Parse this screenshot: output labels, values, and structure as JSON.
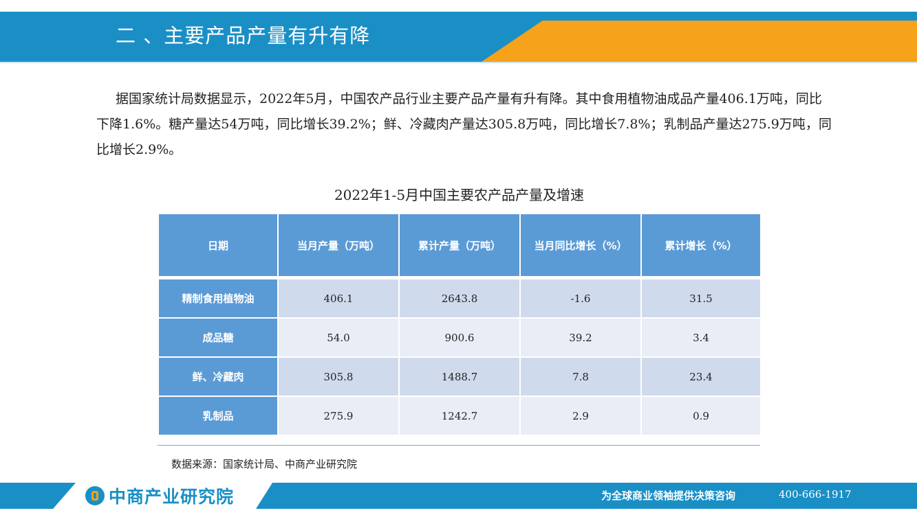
{
  "header": {
    "title": "二 、主要产品产量有升有降"
  },
  "paragraph": "据国家统计局数据显示，2022年5月，中国农产品行业主要产品产量有升有降。其中食用植物油成品产量406.1万吨，同比下降1.6%。糖产量达54万吨，同比增长39.2%；鲜、冷藏肉产量达305.8万吨，同比增长7.8%；乳制品产量达275.9万吨，同比增长2.9%。",
  "table": {
    "caption": "2022年1-5月中国主要农产品产量及增速",
    "headers": [
      "日期",
      "当月产量（万吨）",
      "累计产量（万吨）",
      "当月同比增长（%）",
      "累计增长（%）"
    ],
    "rows": [
      [
        "精制食用植物油",
        "406.1",
        "2643.8",
        "-1.6",
        "31.5"
      ],
      [
        "成品糖",
        "54.0",
        "900.6",
        "39.2",
        "3.4"
      ],
      [
        "鲜、冷藏肉",
        "305.8",
        "1488.7",
        "7.8",
        "23.4"
      ],
      [
        "乳制品",
        "275.9",
        "1242.7",
        "2.9",
        "0.9"
      ]
    ]
  },
  "source": "数据来源：国家统计局、中商产业研究院",
  "footer": {
    "logo_text": "中商产业研究院",
    "slogan": "为全球商业领袖提供决策咨询",
    "phone": "400-666-1917"
  },
  "colors": {
    "primary_blue": "#1a8fc6",
    "accent_orange": "#f6a21a",
    "table_header_blue": "#5b9bd5"
  }
}
